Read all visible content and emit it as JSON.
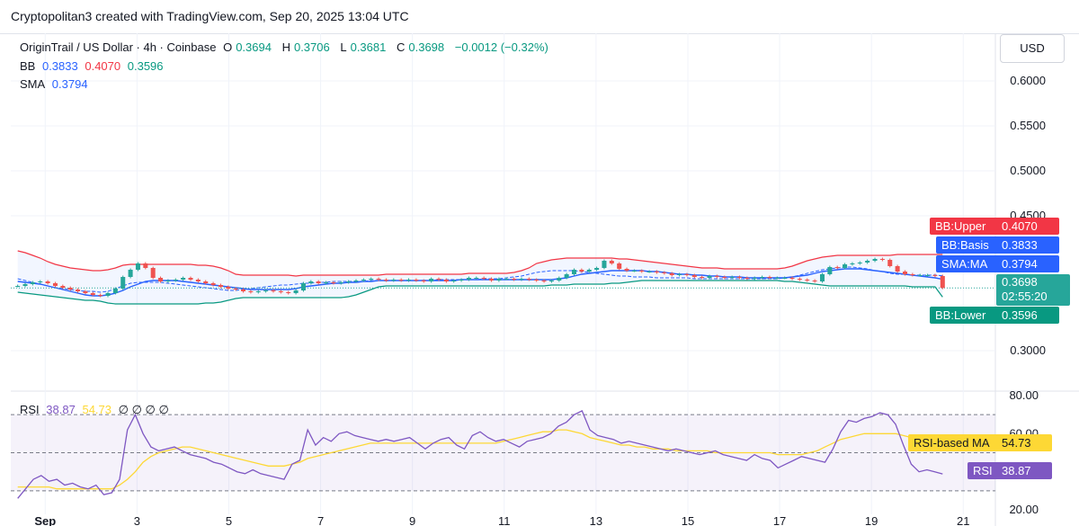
{
  "header": {
    "caption": "Cryptopolitan3 created with TradingView.com, Sep 20, 2025 13:04 UTC"
  },
  "legend": {
    "symbol": "OriginTrail / US Dollar · 4h · Coinbase",
    "ohlc": [
      {
        "k": "O",
        "v": "0.3694"
      },
      {
        "k": "H",
        "v": "0.3706"
      },
      {
        "k": "L",
        "v": "0.3681"
      },
      {
        "k": "C",
        "v": "0.3698"
      }
    ],
    "change": "−0.0012 (−0.32%)",
    "bb_label": "BB",
    "bb_basis": "0.3833",
    "bb_upper": "0.4070",
    "bb_lower": "0.3596",
    "sma_label": "SMA",
    "sma_value": "0.3794",
    "rsi_label": "RSI",
    "rsi_value": "38.87",
    "rsi_ma_value": "54.73",
    "rsi_placeholders": "∅ ∅ ∅ ∅"
  },
  "currency_button": "USD",
  "price_tags": {
    "bb_upper": {
      "label": "BB:Upper",
      "value": "0.4070"
    },
    "bb_basis": {
      "label": "BB:Basis",
      "value": "0.3833"
    },
    "sma": {
      "label": "SMA:MA",
      "value": "0.3794"
    },
    "price": {
      "value": "0.3698",
      "countdown": "02:55:20"
    },
    "bb_lower": {
      "label": "BB:Lower",
      "value": "0.3596"
    },
    "rsi_ma": {
      "label": "RSI-based MA",
      "value": "54.73"
    },
    "rsi": {
      "label": "RSI",
      "value": "38.87"
    }
  },
  "colors": {
    "up": "#26a69a",
    "down": "#ef5350",
    "bb_upper": "#f23645",
    "bb_lower": "#089981",
    "bb_basis": "#2962ff",
    "sma": "#2962ff",
    "rsi": "#7e57c2",
    "rsi_ma": "#fdd835"
  },
  "chart_data": [
    {
      "type": "candlestick",
      "title": "OriginTrail / US Dollar · 4h · Coinbase",
      "y_ticks": [
        "0.6000",
        "0.5500",
        "0.5000",
        "0.4500",
        "0.3000"
      ],
      "ylim": [
        0.27,
        0.6
      ],
      "x_ticks": [
        "Sep",
        "3",
        "5",
        "7",
        "9",
        "11",
        "13",
        "15",
        "17",
        "19",
        "21"
      ],
      "x_tick_days": [
        1,
        3,
        5,
        7,
        9,
        11,
        13,
        15,
        17,
        19,
        21
      ],
      "xlim_days": [
        0.25,
        21.7
      ],
      "candles_x_days": [
        0.4,
        20.55
      ],
      "closes": [
        0.372,
        0.374,
        0.376,
        0.377,
        0.375,
        0.372,
        0.37,
        0.368,
        0.366,
        0.364,
        0.362,
        0.361,
        0.364,
        0.369,
        0.382,
        0.39,
        0.397,
        0.392,
        0.381,
        0.377,
        0.378,
        0.379,
        0.381,
        0.379,
        0.377,
        0.375,
        0.373,
        0.371,
        0.369,
        0.368,
        0.366,
        0.365,
        0.366,
        0.367,
        0.366,
        0.365,
        0.364,
        0.367,
        0.375,
        0.377,
        0.375,
        0.376,
        0.375,
        0.376,
        0.377,
        0.378,
        0.379,
        0.38,
        0.379,
        0.378,
        0.379,
        0.378,
        0.379,
        0.378,
        0.377,
        0.38,
        0.379,
        0.377,
        0.378,
        0.379,
        0.381,
        0.381,
        0.38,
        0.378,
        0.38,
        0.38,
        0.379,
        0.38,
        0.379,
        0.378,
        0.377,
        0.378,
        0.381,
        0.385,
        0.39,
        0.388,
        0.39,
        0.392,
        0.4,
        0.397,
        0.391,
        0.389,
        0.389,
        0.388,
        0.388,
        0.387,
        0.386,
        0.384,
        0.385,
        0.384,
        0.382,
        0.381,
        0.383,
        0.382,
        0.381,
        0.382,
        0.381,
        0.38,
        0.381,
        0.382,
        0.381,
        0.381,
        0.381,
        0.38,
        0.379,
        0.378,
        0.377,
        0.385,
        0.393,
        0.392,
        0.396,
        0.397,
        0.398,
        0.4,
        0.402,
        0.401,
        0.394,
        0.388,
        0.385,
        0.384,
        0.384,
        0.384,
        0.383,
        0.3698
      ],
      "bb_upper": [
        0.411,
        0.409,
        0.406,
        0.403,
        0.399,
        0.396,
        0.394,
        0.392,
        0.391,
        0.39,
        0.389,
        0.389,
        0.39,
        0.392,
        0.395,
        0.396,
        0.396,
        0.396,
        0.396,
        0.396,
        0.396,
        0.396,
        0.396,
        0.396,
        0.395,
        0.395,
        0.394,
        0.392,
        0.389,
        0.385,
        0.384,
        0.384,
        0.384,
        0.384,
        0.384,
        0.384,
        0.384,
        0.383,
        0.384,
        0.384,
        0.384,
        0.384,
        0.384,
        0.384,
        0.384,
        0.384,
        0.384,
        0.384,
        0.384,
        0.385,
        0.385,
        0.385,
        0.385,
        0.385,
        0.385,
        0.385,
        0.385,
        0.385,
        0.385,
        0.385,
        0.386,
        0.386,
        0.386,
        0.386,
        0.386,
        0.386,
        0.387,
        0.389,
        0.392,
        0.397,
        0.399,
        0.401,
        0.402,
        0.403,
        0.403,
        0.403,
        0.403,
        0.403,
        0.403,
        0.403,
        0.402,
        0.402,
        0.401,
        0.4,
        0.399,
        0.398,
        0.397,
        0.396,
        0.395,
        0.394,
        0.393,
        0.392,
        0.392,
        0.392,
        0.391,
        0.391,
        0.391,
        0.391,
        0.391,
        0.391,
        0.391,
        0.391,
        0.392,
        0.394,
        0.397,
        0.4,
        0.402,
        0.404,
        0.405,
        0.406,
        0.406,
        0.406,
        0.406,
        0.406,
        0.406,
        0.406,
        0.406,
        0.407,
        0.407,
        0.407,
        0.407,
        0.407,
        0.407,
        0.407
      ],
      "bb_basis": [
        0.38,
        0.378,
        0.376,
        0.374,
        0.372,
        0.37,
        0.369,
        0.368,
        0.367,
        0.366,
        0.366,
        0.365,
        0.366,
        0.369,
        0.372,
        0.375,
        0.376,
        0.376,
        0.376,
        0.376,
        0.375,
        0.374,
        0.373,
        0.372,
        0.371,
        0.37,
        0.369,
        0.368,
        0.367,
        0.367,
        0.368,
        0.369,
        0.37,
        0.371,
        0.372,
        0.373,
        0.373,
        0.374,
        0.375,
        0.375,
        0.376,
        0.376,
        0.377,
        0.377,
        0.377,
        0.377,
        0.377,
        0.378,
        0.378,
        0.378,
        0.378,
        0.378,
        0.378,
        0.378,
        0.378,
        0.378,
        0.379,
        0.379,
        0.379,
        0.379,
        0.379,
        0.379,
        0.38,
        0.38,
        0.38,
        0.381,
        0.382,
        0.383,
        0.385,
        0.387,
        0.388,
        0.389,
        0.389,
        0.389,
        0.389,
        0.388,
        0.387,
        0.386,
        0.385,
        0.384,
        0.383,
        0.383,
        0.382,
        0.382,
        0.382,
        0.381,
        0.381,
        0.381,
        0.381,
        0.381,
        0.38,
        0.38,
        0.38,
        0.38,
        0.38,
        0.38,
        0.38,
        0.38,
        0.38,
        0.38,
        0.38,
        0.38,
        0.381,
        0.382,
        0.384,
        0.386,
        0.388,
        0.39,
        0.391,
        0.392,
        0.393,
        0.393,
        0.392,
        0.391,
        0.389,
        0.388,
        0.386,
        0.385,
        0.385,
        0.384,
        0.384,
        0.384,
        0.384,
        0.3833
      ],
      "bb_lower": [
        0.365,
        0.364,
        0.363,
        0.362,
        0.361,
        0.36,
        0.359,
        0.358,
        0.357,
        0.356,
        0.356,
        0.355,
        0.353,
        0.352,
        0.352,
        0.352,
        0.352,
        0.352,
        0.352,
        0.352,
        0.352,
        0.352,
        0.352,
        0.352,
        0.352,
        0.353,
        0.353,
        0.354,
        0.356,
        0.358,
        0.359,
        0.359,
        0.359,
        0.359,
        0.359,
        0.359,
        0.359,
        0.359,
        0.359,
        0.359,
        0.359,
        0.359,
        0.359,
        0.359,
        0.36,
        0.362,
        0.365,
        0.368,
        0.371,
        0.372,
        0.372,
        0.372,
        0.372,
        0.372,
        0.372,
        0.372,
        0.372,
        0.372,
        0.372,
        0.372,
        0.372,
        0.372,
        0.372,
        0.372,
        0.372,
        0.372,
        0.372,
        0.372,
        0.372,
        0.372,
        0.372,
        0.373,
        0.373,
        0.373,
        0.374,
        0.374,
        0.374,
        0.374,
        0.374,
        0.375,
        0.375,
        0.376,
        0.377,
        0.378,
        0.378,
        0.378,
        0.378,
        0.378,
        0.378,
        0.378,
        0.378,
        0.378,
        0.378,
        0.378,
        0.378,
        0.378,
        0.378,
        0.378,
        0.378,
        0.378,
        0.378,
        0.378,
        0.377,
        0.377,
        0.376,
        0.375,
        0.374,
        0.373,
        0.372,
        0.372,
        0.372,
        0.372,
        0.372,
        0.372,
        0.372,
        0.372,
        0.372,
        0.372,
        0.372,
        0.371,
        0.371,
        0.371,
        0.371,
        0.3596
      ],
      "sma": [
        0.377,
        0.376,
        0.375,
        0.374,
        0.372,
        0.37,
        0.368,
        0.366,
        0.364,
        0.362,
        0.361,
        0.361,
        0.362,
        0.364,
        0.367,
        0.371,
        0.374,
        0.377,
        0.378,
        0.378,
        0.378,
        0.378,
        0.377,
        0.376,
        0.375,
        0.374,
        0.373,
        0.372,
        0.371,
        0.37,
        0.369,
        0.368,
        0.368,
        0.368,
        0.368,
        0.368,
        0.368,
        0.369,
        0.371,
        0.372,
        0.373,
        0.374,
        0.375,
        0.375,
        0.376,
        0.376,
        0.377,
        0.377,
        0.378,
        0.378,
        0.378,
        0.378,
        0.378,
        0.378,
        0.378,
        0.378,
        0.378,
        0.378,
        0.378,
        0.379,
        0.379,
        0.379,
        0.379,
        0.379,
        0.379,
        0.379,
        0.379,
        0.379,
        0.379,
        0.379,
        0.379,
        0.379,
        0.38,
        0.381,
        0.383,
        0.385,
        0.386,
        0.387,
        0.388,
        0.389,
        0.389,
        0.389,
        0.389,
        0.389,
        0.388,
        0.388,
        0.387,
        0.386,
        0.385,
        0.385,
        0.384,
        0.384,
        0.383,
        0.383,
        0.382,
        0.382,
        0.382,
        0.381,
        0.381,
        0.381,
        0.381,
        0.381,
        0.381,
        0.382,
        0.383,
        0.384,
        0.386,
        0.388,
        0.389,
        0.39,
        0.391,
        0.391,
        0.391,
        0.39,
        0.389,
        0.388,
        0.387,
        0.386,
        0.385,
        0.384,
        0.383,
        0.382,
        0.381,
        0.3794
      ]
    },
    {
      "type": "line",
      "title": "RSI",
      "y_ticks": [
        "80.00",
        "60.00",
        "20.00"
      ],
      "ylim": [
        20,
        80
      ],
      "bands": [
        70,
        50,
        30
      ],
      "rsi": [
        26,
        31,
        36,
        38,
        35,
        36,
        33,
        34,
        32,
        31,
        33,
        28,
        29,
        36,
        62,
        70,
        60,
        53,
        51,
        52,
        53,
        51,
        49,
        48,
        47,
        45,
        44,
        42,
        40,
        39,
        41,
        39,
        38,
        37,
        36,
        44,
        46,
        62,
        54,
        58,
        56,
        60,
        61,
        59,
        58,
        57,
        56,
        57,
        56,
        57,
        58,
        55,
        52,
        55,
        57,
        58,
        54,
        52,
        59,
        61,
        58,
        56,
        57,
        55,
        53,
        56,
        57,
        58,
        60,
        64,
        66,
        70,
        72,
        62,
        59,
        58,
        57,
        55,
        56,
        55,
        54,
        53,
        52,
        51,
        52,
        51,
        50,
        49,
        50,
        51,
        49,
        48,
        47,
        46,
        49,
        47,
        46,
        42,
        44,
        46,
        48,
        47,
        46,
        45,
        52,
        61,
        67,
        66,
        68,
        69,
        71,
        70,
        65,
        54,
        44,
        40,
        41,
        40,
        38.87
      ],
      "rsi_ma": [
        32,
        32,
        32,
        32,
        32,
        31,
        31,
        31,
        31,
        31,
        31,
        31,
        31,
        33,
        36,
        40,
        45,
        48,
        50,
        51,
        52,
        53,
        53,
        52,
        51,
        50,
        49,
        48,
        47,
        46,
        45,
        44,
        43,
        43,
        43,
        44,
        45,
        47,
        48,
        49,
        50,
        51,
        52,
        53,
        54,
        55,
        55,
        55,
        55,
        55,
        55,
        55,
        55,
        55,
        55,
        55,
        55,
        55,
        55,
        55,
        55,
        55,
        56,
        57,
        58,
        59,
        60,
        61,
        61,
        62,
        62,
        61,
        60,
        58,
        57,
        56,
        55,
        54,
        54,
        53,
        53,
        52,
        52,
        52,
        51,
        51,
        51,
        51,
        51,
        50,
        50,
        50,
        50,
        50,
        50,
        50,
        50,
        49,
        49,
        49,
        49,
        50,
        51,
        53,
        55,
        57,
        58,
        59,
        60,
        60,
        60,
        60,
        60,
        59,
        58,
        57,
        56,
        55,
        54.73
      ]
    }
  ]
}
